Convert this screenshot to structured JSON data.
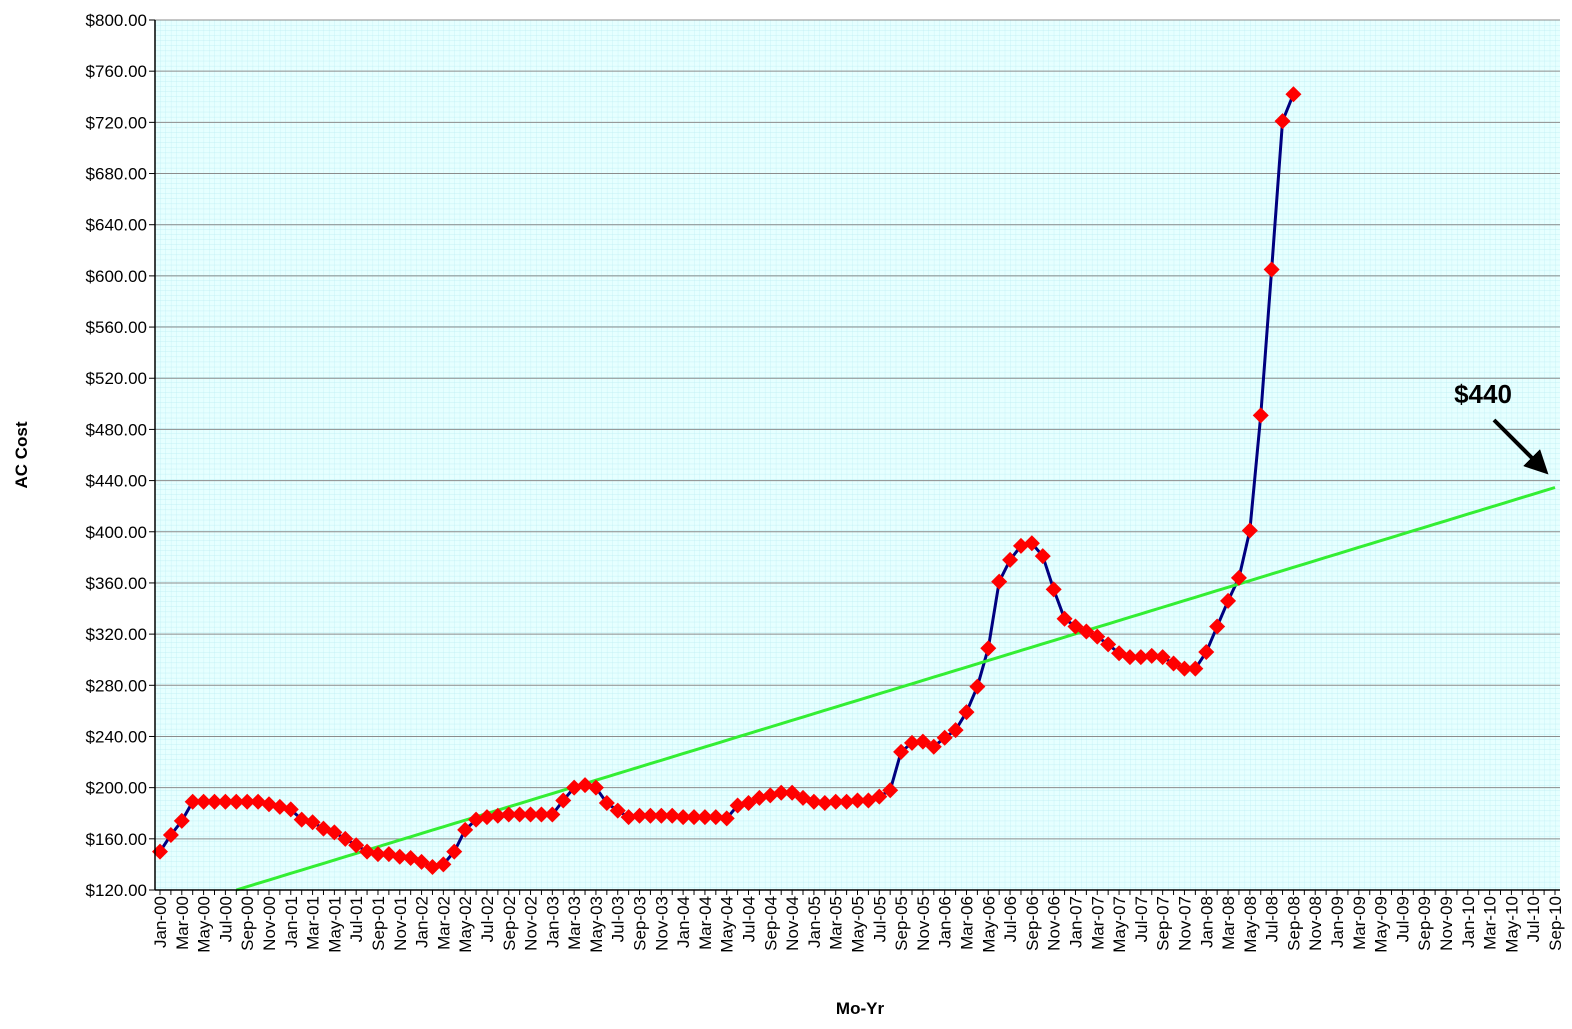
{
  "chart_data": {
    "type": "line",
    "x_label": "Mo-Yr",
    "y_label": "AC Cost",
    "annotation": "$440",
    "categories": [
      "Jan-00",
      null,
      "Mar-00",
      null,
      "May-00",
      null,
      "Jul-00",
      null,
      "Sep-00",
      null,
      "Nov-00",
      null,
      "Jan-01",
      null,
      "Mar-01",
      null,
      "May-01",
      null,
      "Jul-01",
      null,
      "Sep-01",
      null,
      "Nov-01",
      null,
      "Jan-02",
      null,
      "Mar-02",
      null,
      "May-02",
      null,
      "Jul-02",
      null,
      "Sep-02",
      null,
      "Nov-02",
      null,
      "Jan-03",
      null,
      "Mar-03",
      null,
      "May-03",
      null,
      "Jul-03",
      null,
      "Sep-03",
      null,
      "Nov-03",
      null,
      "Jan-04",
      null,
      "Mar-04",
      null,
      "May-04",
      null,
      "Jul-04",
      null,
      "Sep-04",
      null,
      "Nov-04",
      null,
      "Jan-05",
      null,
      "Mar-05",
      null,
      "May-05",
      null,
      "Jul-05",
      null,
      "Sep-05",
      null,
      "Nov-05",
      null,
      "Jan-06",
      null,
      "Mar-06",
      null,
      "May-06",
      null,
      "Jul-06",
      null,
      "Sep-06",
      null,
      "Nov-06",
      null,
      "Jan-07",
      null,
      "Mar-07",
      null,
      "May-07",
      null,
      "Jul-07",
      null,
      "Sep-07",
      null,
      "Nov-07",
      null,
      "Jan-08",
      null,
      "Mar-08",
      null,
      "May-08",
      null,
      "Jul-08",
      null,
      "Sep-08",
      null,
      "Nov-08",
      null,
      "Jan-09",
      null,
      "Mar-09",
      null,
      "May-09",
      null,
      "Jul-09",
      null,
      "Sep-09",
      null,
      "Nov-09",
      null,
      "Jan-10",
      null,
      "Mar-10",
      null,
      "May-10",
      null,
      "Jul-10",
      null,
      "Sep-10"
    ],
    "series": [
      {
        "color": "#000080",
        "marker": "diamond",
        "marker_color": "#ff0000",
        "values": [
          150,
          163,
          174,
          189,
          189,
          189,
          189,
          189,
          189,
          189,
          187,
          185,
          183,
          175,
          173,
          168,
          165,
          160,
          155,
          150,
          148,
          148,
          146,
          145,
          142,
          138,
          140,
          150,
          167,
          175,
          177,
          178,
          179,
          179,
          179,
          179,
          179,
          190,
          200,
          202,
          200,
          188,
          182,
          177,
          178,
          178,
          178,
          178,
          177,
          177,
          177,
          177,
          176,
          186,
          188,
          192,
          194,
          196,
          196,
          192,
          189,
          188,
          189,
          189,
          190,
          190,
          193,
          198,
          228,
          235,
          236,
          232,
          239,
          245,
          259,
          279,
          309,
          361,
          378,
          389,
          391,
          381,
          355,
          332,
          326,
          322,
          318,
          312,
          305,
          302,
          302,
          303,
          302,
          297,
          293,
          293,
          306,
          326,
          346,
          364,
          401,
          491,
          605,
          721,
          742,
          null,
          null,
          null,
          null,
          null,
          null,
          null,
          null,
          null,
          null,
          null,
          null,
          null,
          null,
          null,
          null,
          null,
          null,
          null,
          null,
          null,
          null,
          null,
          null
        ]
      },
      {
        "color": "#33ee33",
        "values": [
          null,
          null,
          null,
          null,
          null,
          null,
          null,
          120,
          122.6,
          125.2,
          127.8,
          130.4,
          133,
          135.6,
          138.2,
          140.8,
          143.4,
          146,
          148.6,
          151.2,
          153.8,
          156.4,
          159,
          161.6,
          164.2,
          166.8,
          169.4,
          172,
          174.6,
          177.2,
          179.8,
          182.4,
          185,
          187.6,
          190.2,
          192.8,
          195.4,
          198,
          200.6,
          203.2,
          205.8,
          208.4,
          211,
          213.6,
          216.2,
          218.8,
          221.4,
          224,
          226.6,
          229.2,
          231.8,
          234.4,
          237,
          239.6,
          242.2,
          244.8,
          247.4,
          250,
          252.6,
          255.2,
          257.8,
          260.4,
          263,
          265.6,
          268.2,
          270.8,
          273.4,
          276,
          278.6,
          281.2,
          283.8,
          286.4,
          289,
          291.6,
          294.2,
          296.8,
          299.4,
          302,
          304.6,
          307.2,
          309.8,
          312.4,
          315,
          317.6,
          320.2,
          322.8,
          325.4,
          328,
          330.6,
          333.2,
          335.8,
          338.4,
          341,
          343.6,
          346.2,
          348.8,
          351.4,
          354,
          356.6,
          359.2,
          361.8,
          364.4,
          367,
          369.6,
          372.2,
          374.8,
          377.4,
          380,
          382.6,
          385.2,
          387.8,
          390.4,
          393,
          395.6,
          398.2,
          400.8,
          403.4,
          406,
          408.6,
          411.2,
          413.8,
          416.4,
          419,
          421.6,
          424.2,
          426.8,
          429.4,
          432,
          434.6
        ]
      }
    ],
    "ylim": [
      120,
      800
    ],
    "yticks": [
      {
        "value": 120,
        "label": "$120.00"
      },
      {
        "value": 160,
        "label": "$160.00"
      },
      {
        "value": 200,
        "label": "$200.00"
      },
      {
        "value": 240,
        "label": "$240.00"
      },
      {
        "value": 280,
        "label": "$280.00"
      },
      {
        "value": 320,
        "label": "$320.00"
      },
      {
        "value": 360,
        "label": "$360.00"
      },
      {
        "value": 400,
        "label": "$400.00"
      },
      {
        "value": 440,
        "label": "$440.00"
      },
      {
        "value": 480,
        "label": "$480.00"
      },
      {
        "value": 520,
        "label": "$520.00"
      },
      {
        "value": 560,
        "label": "$560.00"
      },
      {
        "value": 600,
        "label": "$600.00"
      },
      {
        "value": 640,
        "label": "$640.00"
      },
      {
        "value": 680,
        "label": "$680.00"
      },
      {
        "value": 720,
        "label": "$720.00"
      },
      {
        "value": 760,
        "label": "$760.00"
      },
      {
        "value": 800,
        "label": "$800.00"
      }
    ],
    "grid": true,
    "plot_background": "#e6ffff"
  }
}
